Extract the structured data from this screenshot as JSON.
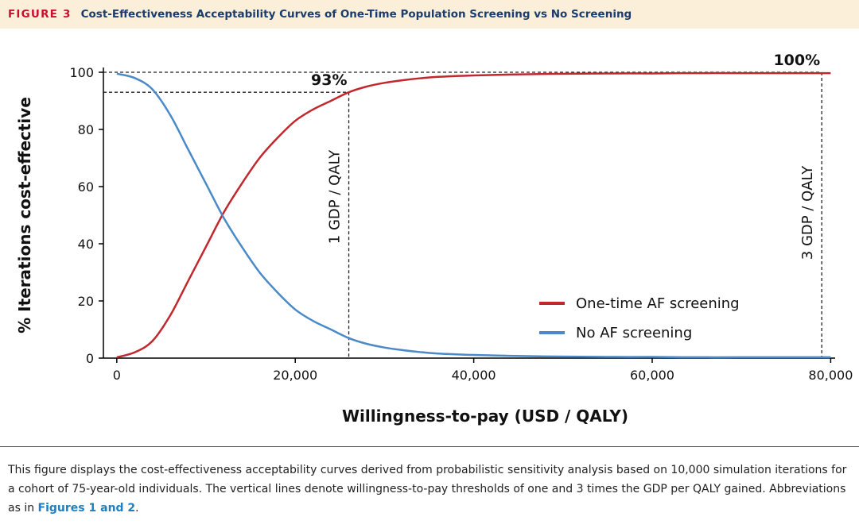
{
  "header": {
    "figure_label": "FIGURE 3",
    "title": "Cost-Effectiveness Acceptability Curves of One-Time Population Screening vs No Screening"
  },
  "caption": {
    "text": "This figure displays the cost-effectiveness acceptability curves derived from probabilistic sensitivity analysis based on 10,000 simulation iterations for a cohort of 75-year-old individuals. The vertical lines denote willingness-to-pay thresholds of one and 3 times the GDP per QALY gained. Abbreviations as in ",
    "ref": "Figures 1 and 2",
    "end": "."
  },
  "colors": {
    "screening": "#c0282e",
    "no_screening": "#4a8ac8",
    "fig_label": "#c8102e",
    "title": "#1a3c6e",
    "header_bg": "#fcefd9"
  },
  "chart_data": {
    "type": "line",
    "xlabel": "Willingness-to-pay (USD / QALY)",
    "ylabel": "% Iterations cost-effective",
    "xlim": [
      -1500,
      80500
    ],
    "ylim": [
      0,
      100
    ],
    "x_ticks": [
      0,
      20000,
      40000,
      60000,
      80000
    ],
    "x_tick_labels": [
      "0",
      "20,000",
      "40,000",
      "60,000",
      "80,000"
    ],
    "y_ticks": [
      0,
      20,
      40,
      60,
      80,
      100
    ],
    "y_tick_labels": [
      "0",
      "20",
      "40",
      "60",
      "80",
      "100"
    ],
    "legend_position": "center-right",
    "series": [
      {
        "name": "One-time AF screening",
        "color": "#c0282e",
        "x": [
          0,
          2000,
          4000,
          6000,
          8000,
          10000,
          12000,
          14000,
          16000,
          18000,
          20000,
          22000,
          24000,
          26000,
          28000,
          30000,
          32000,
          34000,
          36000,
          40000,
          44000,
          48000,
          52000,
          56000,
          60000,
          65000,
          70000,
          75000,
          80000
        ],
        "y": [
          0.3,
          2,
          6,
          15,
          27,
          39,
          51,
          61,
          70,
          77,
          83,
          87,
          90,
          93,
          95,
          96.3,
          97.2,
          97.9,
          98.4,
          98.9,
          99.2,
          99.4,
          99.5,
          99.6,
          99.6,
          99.7,
          99.7,
          99.7,
          99.7
        ]
      },
      {
        "name": "No AF screening",
        "color": "#4a8ac8",
        "x": [
          0,
          2000,
          4000,
          6000,
          8000,
          10000,
          12000,
          14000,
          16000,
          18000,
          20000,
          22000,
          24000,
          26000,
          28000,
          30000,
          32000,
          34000,
          36000,
          40000,
          44000,
          48000,
          52000,
          56000,
          60000,
          65000,
          70000,
          75000,
          80000
        ],
        "y": [
          99.5,
          98,
          94,
          85,
          73,
          61,
          49,
          39,
          30,
          23,
          17,
          13,
          10,
          7,
          5,
          3.7,
          2.8,
          2.1,
          1.6,
          1.1,
          0.8,
          0.6,
          0.5,
          0.4,
          0.4,
          0.3,
          0.3,
          0.3,
          0.3
        ]
      }
    ],
    "thresholds": [
      {
        "label": "1 GDP / QALY",
        "x": 26000,
        "y": 93,
        "annotation": "93%"
      },
      {
        "label": "3 GDP / QALY",
        "x": 79000,
        "y": 100,
        "annotation": "100%"
      }
    ]
  }
}
